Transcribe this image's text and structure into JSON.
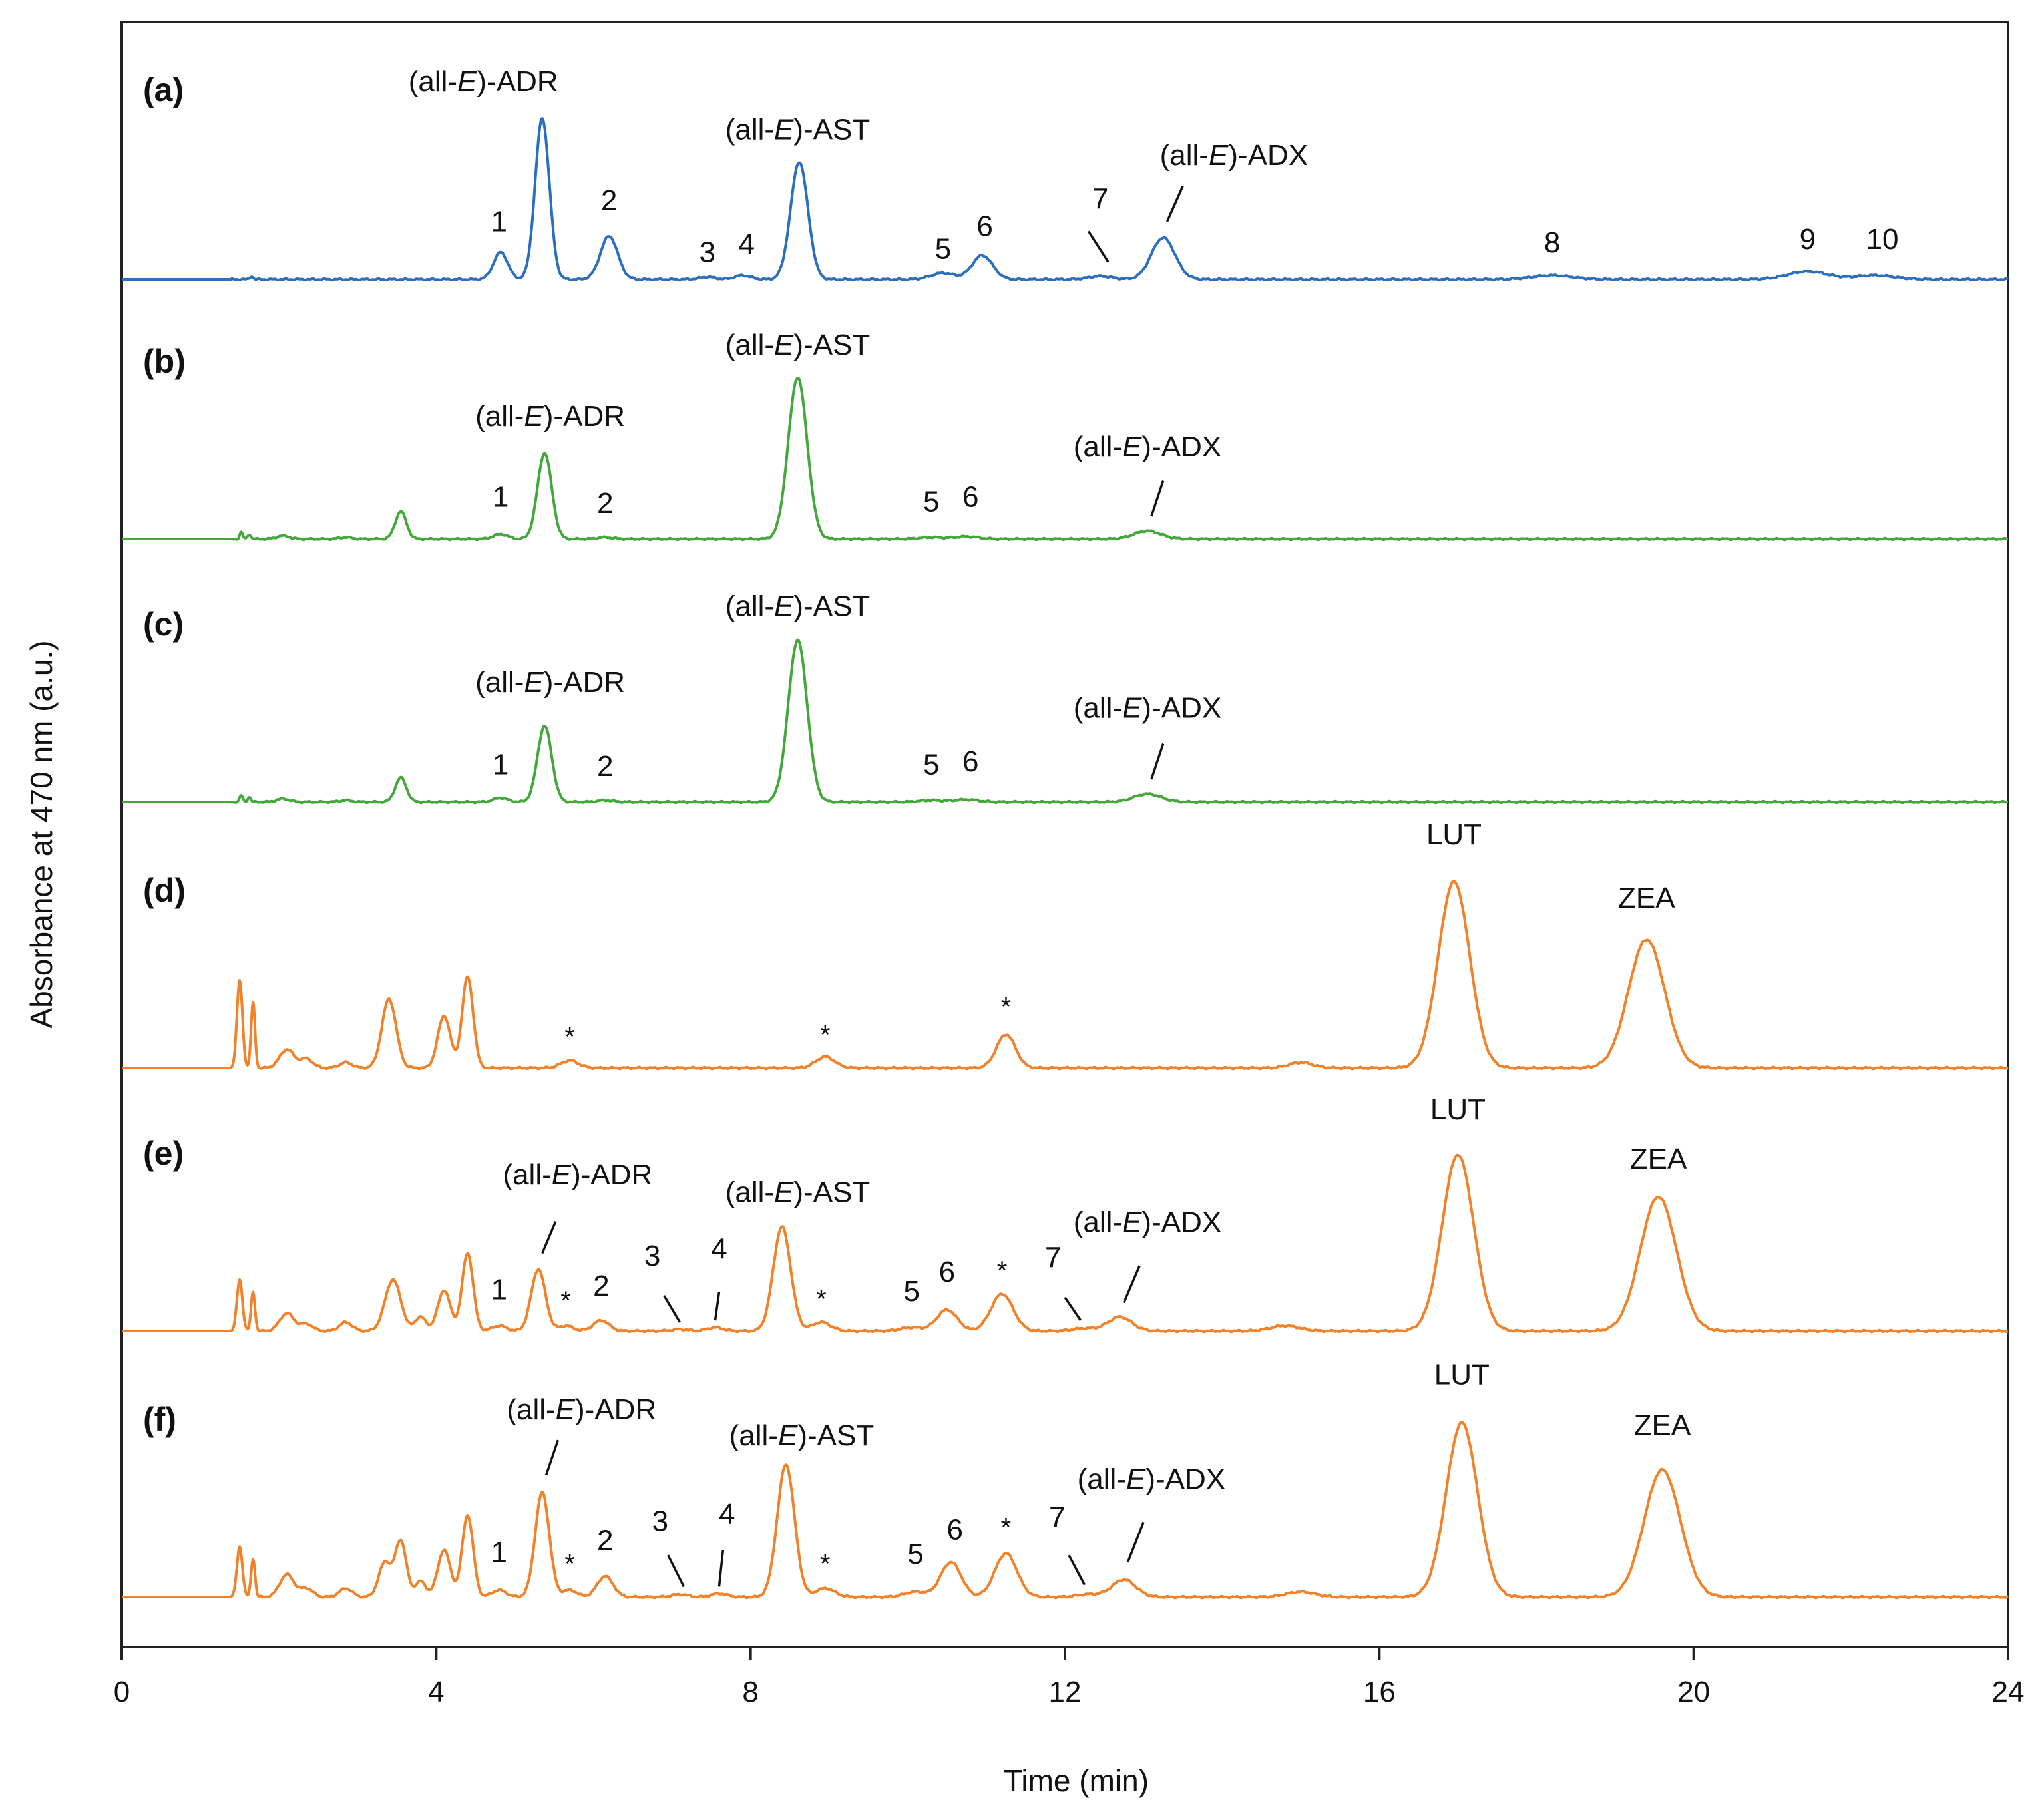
{
  "chart_data": {
    "type": "line",
    "title": "",
    "xlabel": "Time (min)",
    "ylabel": "Absorbance at 470 nm (a.u.)",
    "xlim": [
      0,
      24
    ],
    "xticks": [
      "0",
      "4",
      "8",
      "12",
      "16",
      "20",
      "24"
    ],
    "grid": false,
    "colors": {
      "a": "#2a6fbf",
      "b": "#43a83a",
      "c": "#43a83a",
      "d": "#f28128",
      "e": "#f28128",
      "f": "#f28128"
    },
    "panels": [
      {
        "id": "a",
        "label": "(a)",
        "color_key": "a",
        "peaks": [
          {
            "t": 1.65,
            "h": 0.02,
            "w": 0.02
          },
          {
            "t": 4.82,
            "h": 0.17,
            "w": 0.09
          },
          {
            "t": 5.35,
            "h": 1.0,
            "w": 0.09
          },
          {
            "t": 6.2,
            "h": 0.27,
            "w": 0.11
          },
          {
            "t": 7.45,
            "h": 0.015,
            "w": 0.1
          },
          {
            "t": 7.9,
            "h": 0.025,
            "w": 0.1
          },
          {
            "t": 8.62,
            "h": 0.73,
            "w": 0.11
          },
          {
            "t": 10.45,
            "h": 0.04,
            "w": 0.15
          },
          {
            "t": 10.95,
            "h": 0.15,
            "w": 0.13
          },
          {
            "t": 12.45,
            "h": 0.02,
            "w": 0.15
          },
          {
            "t": 13.25,
            "h": 0.26,
            "w": 0.15
          },
          {
            "t": 18.2,
            "h": 0.025,
            "w": 0.25
          },
          {
            "t": 21.45,
            "h": 0.05,
            "w": 0.25
          },
          {
            "t": 22.3,
            "h": 0.025,
            "w": 0.25
          }
        ],
        "labels": [
          {
            "text": "1",
            "t": 4.8,
            "h": 0.3
          },
          {
            "text": "2",
            "t": 6.2,
            "h": 0.43
          },
          {
            "text": "3",
            "t": 7.45,
            "h": 0.11
          },
          {
            "text": "4",
            "t": 7.95,
            "h": 0.16
          },
          {
            "text": "5",
            "t": 10.45,
            "h": 0.13
          },
          {
            "text": "6",
            "t": 10.98,
            "h": 0.27
          },
          {
            "text": "7",
            "t": 12.45,
            "h": 0.44
          },
          {
            "text": "8",
            "t": 18.2,
            "h": 0.17
          },
          {
            "text": "9",
            "t": 21.45,
            "h": 0.19
          },
          {
            "text": "10",
            "t": 22.4,
            "h": 0.19
          }
        ],
        "compounds": [
          {
            "name": "ADR",
            "t": 4.6,
            "h": 1.17
          },
          {
            "name": "AST",
            "t": 8.6,
            "h": 0.87
          },
          {
            "name": "ADX",
            "t": 14.15,
            "h": 0.71
          }
        ],
        "leaders": [
          {
            "t0": 12.55,
            "h0": 0.11,
            "t1": 12.3,
            "h1": 0.3
          },
          {
            "t0": 13.3,
            "h0": 0.36,
            "t1": 13.5,
            "h1": 0.58
          }
        ],
        "stars": []
      },
      {
        "id": "b",
        "label": "(b)",
        "color_key": "b",
        "peaks": [
          {
            "t": 1.52,
            "h": 0.04,
            "w": 0.02
          },
          {
            "t": 1.62,
            "h": 0.03,
            "w": 0.02
          },
          {
            "t": 2.05,
            "h": 0.02,
            "w": 0.08
          },
          {
            "t": 2.85,
            "h": 0.01,
            "w": 0.08
          },
          {
            "t": 3.55,
            "h": 0.17,
            "w": 0.07
          },
          {
            "t": 4.82,
            "h": 0.03,
            "w": 0.09
          },
          {
            "t": 5.38,
            "h": 0.53,
            "w": 0.09
          },
          {
            "t": 6.15,
            "h": 0.01,
            "w": 0.1
          },
          {
            "t": 8.6,
            "h": 1.0,
            "w": 0.12
          },
          {
            "t": 10.3,
            "h": 0.01,
            "w": 0.15
          },
          {
            "t": 10.75,
            "h": 0.015,
            "w": 0.15
          },
          {
            "t": 13.05,
            "h": 0.05,
            "w": 0.17
          }
        ],
        "labels": [
          {
            "text": "1",
            "t": 4.82,
            "h": 0.2
          },
          {
            "text": "2",
            "t": 6.15,
            "h": 0.16
          },
          {
            "text": "5",
            "t": 10.3,
            "h": 0.17
          },
          {
            "text": "6",
            "t": 10.8,
            "h": 0.2
          }
        ],
        "compounds": [
          {
            "name": "ADR",
            "t": 5.45,
            "h": 0.7
          },
          {
            "name": "AST",
            "t": 8.6,
            "h": 1.14
          },
          {
            "name": "ADX",
            "t": 13.05,
            "h": 0.51
          }
        ],
        "leaders": [
          {
            "t0": 13.1,
            "h0": 0.14,
            "t1": 13.25,
            "h1": 0.36
          }
        ],
        "stars": []
      },
      {
        "id": "c",
        "label": "(c)",
        "color_key": "c",
        "peaks": [
          {
            "t": 1.52,
            "h": 0.04,
            "w": 0.02
          },
          {
            "t": 1.62,
            "h": 0.03,
            "w": 0.02
          },
          {
            "t": 2.05,
            "h": 0.02,
            "w": 0.08
          },
          {
            "t": 2.85,
            "h": 0.01,
            "w": 0.08
          },
          {
            "t": 3.55,
            "h": 0.15,
            "w": 0.07
          },
          {
            "t": 4.82,
            "h": 0.025,
            "w": 0.09
          },
          {
            "t": 5.38,
            "h": 0.47,
            "w": 0.09
          },
          {
            "t": 6.15,
            "h": 0.01,
            "w": 0.1
          },
          {
            "t": 8.6,
            "h": 1.0,
            "w": 0.12
          },
          {
            "t": 10.3,
            "h": 0.01,
            "w": 0.15
          },
          {
            "t": 10.75,
            "h": 0.015,
            "w": 0.15
          },
          {
            "t": 13.05,
            "h": 0.05,
            "w": 0.17
          }
        ],
        "labels": [
          {
            "text": "1",
            "t": 4.82,
            "h": 0.17
          },
          {
            "text": "2",
            "t": 6.15,
            "h": 0.16
          },
          {
            "text": "5",
            "t": 10.3,
            "h": 0.17
          },
          {
            "text": "6",
            "t": 10.8,
            "h": 0.19
          }
        ],
        "compounds": [
          {
            "name": "ADR",
            "t": 5.45,
            "h": 0.68
          },
          {
            "name": "AST",
            "t": 8.6,
            "h": 1.15
          },
          {
            "name": "ADX",
            "t": 13.05,
            "h": 0.52
          }
        ],
        "leaders": [
          {
            "t0": 13.1,
            "h0": 0.14,
            "t1": 13.25,
            "h1": 0.36
          }
        ],
        "stars": []
      },
      {
        "id": "d",
        "label": "(d)",
        "color_key": "d",
        "peaks": [
          {
            "t": 1.5,
            "h": 0.47,
            "w": 0.035
          },
          {
            "t": 1.67,
            "h": 0.35,
            "w": 0.025
          },
          {
            "t": 2.1,
            "h": 0.1,
            "w": 0.09
          },
          {
            "t": 2.35,
            "h": 0.05,
            "w": 0.08
          },
          {
            "t": 2.85,
            "h": 0.03,
            "w": 0.08
          },
          {
            "t": 3.4,
            "h": 0.37,
            "w": 0.09
          },
          {
            "t": 4.1,
            "h": 0.28,
            "w": 0.08
          },
          {
            "t": 4.4,
            "h": 0.49,
            "w": 0.07
          },
          {
            "t": 5.7,
            "h": 0.04,
            "w": 0.11
          },
          {
            "t": 8.95,
            "h": 0.06,
            "w": 0.12
          },
          {
            "t": 11.25,
            "h": 0.18,
            "w": 0.12
          },
          {
            "t": 15.0,
            "h": 0.03,
            "w": 0.15
          },
          {
            "t": 16.95,
            "h": 1.0,
            "w": 0.2
          },
          {
            "t": 19.4,
            "h": 0.69,
            "w": 0.23
          }
        ],
        "labels": [
          {
            "text": "LUT",
            "t": 16.95,
            "h": 1.2
          },
          {
            "text": "ZEA",
            "t": 19.4,
            "h": 0.86
          }
        ],
        "compounds": [],
        "leaders": [],
        "stars": [
          {
            "t": 5.7,
            "h": 0.12
          },
          {
            "t": 8.95,
            "h": 0.13
          },
          {
            "t": 11.25,
            "h": 0.28
          }
        ]
      },
      {
        "id": "e",
        "label": "(e)",
        "color_key": "e",
        "peaks": [
          {
            "t": 1.5,
            "h": 0.29,
            "w": 0.035
          },
          {
            "t": 1.67,
            "h": 0.22,
            "w": 0.025
          },
          {
            "t": 2.1,
            "h": 0.1,
            "w": 0.09
          },
          {
            "t": 2.35,
            "h": 0.04,
            "w": 0.08
          },
          {
            "t": 2.85,
            "h": 0.05,
            "w": 0.08
          },
          {
            "t": 3.45,
            "h": 0.29,
            "w": 0.1
          },
          {
            "t": 3.8,
            "h": 0.08,
            "w": 0.07
          },
          {
            "t": 4.1,
            "h": 0.23,
            "w": 0.08
          },
          {
            "t": 4.4,
            "h": 0.44,
            "w": 0.07
          },
          {
            "t": 4.8,
            "h": 0.03,
            "w": 0.09
          },
          {
            "t": 5.3,
            "h": 0.35,
            "w": 0.09
          },
          {
            "t": 5.65,
            "h": 0.03,
            "w": 0.09
          },
          {
            "t": 6.1,
            "h": 0.06,
            "w": 0.1
          },
          {
            "t": 7.1,
            "h": 0.01,
            "w": 0.1
          },
          {
            "t": 7.55,
            "h": 0.02,
            "w": 0.1
          },
          {
            "t": 8.4,
            "h": 0.59,
            "w": 0.11
          },
          {
            "t": 8.9,
            "h": 0.05,
            "w": 0.12
          },
          {
            "t": 10.05,
            "h": 0.02,
            "w": 0.14
          },
          {
            "t": 10.5,
            "h": 0.12,
            "w": 0.13
          },
          {
            "t": 11.2,
            "h": 0.21,
            "w": 0.14
          },
          {
            "t": 12.25,
            "h": 0.015,
            "w": 0.15
          },
          {
            "t": 12.7,
            "h": 0.08,
            "w": 0.15
          },
          {
            "t": 14.8,
            "h": 0.03,
            "w": 0.18
          },
          {
            "t": 17.0,
            "h": 1.0,
            "w": 0.2
          },
          {
            "t": 19.55,
            "h": 0.76,
            "w": 0.23
          }
        ],
        "labels": [
          {
            "text": "1",
            "t": 4.8,
            "h": 0.18
          },
          {
            "text": "2",
            "t": 6.1,
            "h": 0.2
          },
          {
            "text": "3",
            "t": 6.75,
            "h": 0.37
          },
          {
            "text": "4",
            "t": 7.6,
            "h": 0.41
          },
          {
            "text": "5",
            "t": 10.05,
            "h": 0.17
          },
          {
            "text": "6",
            "t": 10.5,
            "h": 0.28
          },
          {
            "text": "7",
            "t": 11.85,
            "h": 0.36
          },
          {
            "text": "LUT",
            "t": 17.0,
            "h": 1.2
          },
          {
            "text": "ZEA",
            "t": 19.55,
            "h": 0.92
          }
        ],
        "compounds": [
          {
            "name": "ADR",
            "t": 5.8,
            "h": 0.83
          },
          {
            "name": "AST",
            "t": 8.6,
            "h": 0.73
          },
          {
            "name": "ADX",
            "t": 13.05,
            "h": 0.56
          }
        ],
        "leaders": [
          {
            "t0": 5.35,
            "h0": 0.44,
            "t1": 5.52,
            "h1": 0.62
          },
          {
            "t0": 7.1,
            "h0": 0.05,
            "t1": 6.9,
            "h1": 0.2
          },
          {
            "t0": 7.55,
            "h0": 0.06,
            "t1": 7.6,
            "h1": 0.22
          },
          {
            "t0": 12.2,
            "h0": 0.06,
            "t1": 12.0,
            "h1": 0.19
          },
          {
            "t0": 12.75,
            "h0": 0.16,
            "t1": 12.95,
            "h1": 0.37
          }
        ],
        "stars": [
          {
            "t": 5.65,
            "h": 0.12
          },
          {
            "t": 8.9,
            "h": 0.13
          },
          {
            "t": 11.2,
            "h": 0.29
          }
        ]
      },
      {
        "id": "f",
        "label": "(f)",
        "color_key": "f",
        "peaks": [
          {
            "t": 1.5,
            "h": 0.29,
            "w": 0.035
          },
          {
            "t": 1.67,
            "h": 0.22,
            "w": 0.025
          },
          {
            "t": 2.1,
            "h": 0.13,
            "w": 0.09
          },
          {
            "t": 2.35,
            "h": 0.05,
            "w": 0.08
          },
          {
            "t": 2.85,
            "h": 0.05,
            "w": 0.08
          },
          {
            "t": 3.35,
            "h": 0.2,
            "w": 0.08
          },
          {
            "t": 3.55,
            "h": 0.32,
            "w": 0.07
          },
          {
            "t": 3.8,
            "h": 0.09,
            "w": 0.07
          },
          {
            "t": 4.1,
            "h": 0.27,
            "w": 0.08
          },
          {
            "t": 4.4,
            "h": 0.47,
            "w": 0.07
          },
          {
            "t": 4.8,
            "h": 0.04,
            "w": 0.09
          },
          {
            "t": 5.35,
            "h": 0.6,
            "w": 0.09
          },
          {
            "t": 5.7,
            "h": 0.04,
            "w": 0.09
          },
          {
            "t": 6.15,
            "h": 0.12,
            "w": 0.1
          },
          {
            "t": 7.1,
            "h": 0.015,
            "w": 0.1
          },
          {
            "t": 7.6,
            "h": 0.02,
            "w": 0.1
          },
          {
            "t": 8.45,
            "h": 0.76,
            "w": 0.11
          },
          {
            "t": 8.95,
            "h": 0.05,
            "w": 0.12
          },
          {
            "t": 10.1,
            "h": 0.03,
            "w": 0.14
          },
          {
            "t": 10.55,
            "h": 0.2,
            "w": 0.13
          },
          {
            "t": 11.25,
            "h": 0.25,
            "w": 0.14
          },
          {
            "t": 12.3,
            "h": 0.015,
            "w": 0.15
          },
          {
            "t": 12.75,
            "h": 0.1,
            "w": 0.15
          },
          {
            "t": 15.0,
            "h": 0.03,
            "w": 0.18
          },
          {
            "t": 17.05,
            "h": 1.0,
            "w": 0.2
          },
          {
            "t": 19.6,
            "h": 0.73,
            "w": 0.23
          }
        ],
        "labels": [
          {
            "text": "1",
            "t": 4.8,
            "h": 0.2
          },
          {
            "text": "2",
            "t": 6.15,
            "h": 0.27
          },
          {
            "text": "3",
            "t": 6.85,
            "h": 0.38
          },
          {
            "text": "4",
            "t": 7.7,
            "h": 0.42
          },
          {
            "text": "5",
            "t": 10.1,
            "h": 0.19
          },
          {
            "text": "6",
            "t": 10.6,
            "h": 0.33
          },
          {
            "text": "7",
            "t": 11.9,
            "h": 0.4
          },
          {
            "text": "LUT",
            "t": 17.05,
            "h": 1.22
          },
          {
            "text": "ZEA",
            "t": 19.6,
            "h": 0.93
          }
        ],
        "compounds": [
          {
            "name": "ADR",
            "t": 5.85,
            "h": 1.02
          },
          {
            "name": "AST",
            "t": 8.65,
            "h": 0.87
          },
          {
            "name": "ADX",
            "t": 13.1,
            "h": 0.62
          }
        ],
        "leaders": [
          {
            "t0": 5.4,
            "h0": 0.7,
            "t1": 5.55,
            "h1": 0.9
          },
          {
            "t0": 7.15,
            "h0": 0.06,
            "t1": 6.95,
            "h1": 0.24
          },
          {
            "t0": 7.6,
            "h0": 0.06,
            "t1": 7.65,
            "h1": 0.27
          },
          {
            "t0": 12.25,
            "h0": 0.07,
            "t1": 12.05,
            "h1": 0.24
          },
          {
            "t0": 12.8,
            "h0": 0.2,
            "t1": 13.0,
            "h1": 0.43
          }
        ],
        "stars": [
          {
            "t": 5.7,
            "h": 0.14
          },
          {
            "t": 8.95,
            "h": 0.14
          },
          {
            "t": 11.25,
            "h": 0.35
          }
        ]
      }
    ]
  },
  "compound_prefix": "(all-",
  "compound_italic": "E",
  "compound_suffix": ")-",
  "star_symbol": "*"
}
